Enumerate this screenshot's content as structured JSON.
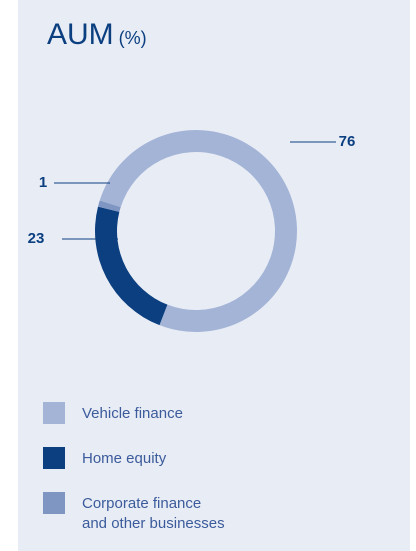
{
  "chart_data": {
    "type": "pie",
    "title": "AUM",
    "subtitle": "(%)",
    "categories": [
      "Vehicle finance",
      "Home equity",
      "Corporate finance and other businesses"
    ],
    "values": [
      76,
      23,
      1
    ],
    "colors": [
      "#a3b4d6",
      "#0b3f80",
      "#7f96c3"
    ]
  }
}
